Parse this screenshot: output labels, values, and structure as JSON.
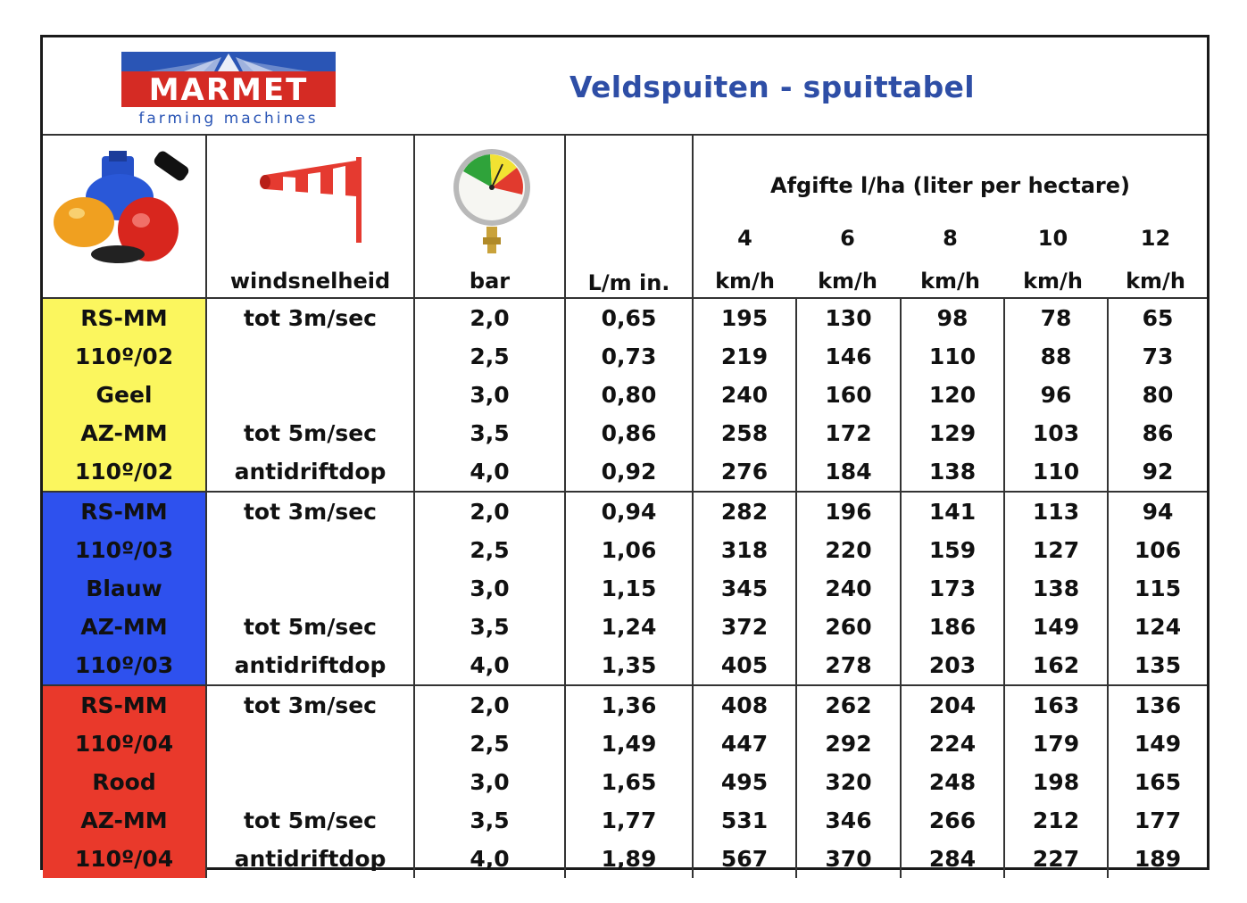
{
  "header": {
    "logo_name": "MARMET",
    "logo_tagline": "farming machines",
    "title": "Veldspuiten - spuittabel"
  },
  "columns": {
    "wind": "windsnelheid",
    "bar": "bar",
    "lmin": "L/m in.",
    "afgifte_title": "Afgifte  l/ha  (liter per hectare)",
    "speeds": [
      "4",
      "6",
      "8",
      "10",
      "12"
    ],
    "speed_unit": "km/h"
  },
  "colors": {
    "yellow": "#fbf65e",
    "blue": "#2e51ee",
    "red": "#e9392b",
    "title_blue": "#2e4ea6"
  },
  "groups": [
    {
      "color": "yellow",
      "rows": [
        {
          "nozzle": "RS-MM",
          "wind": "tot 3m/sec",
          "bar": "2,0",
          "lmin": "0,65",
          "v": [
            "195",
            "130",
            "98",
            "78",
            "65"
          ]
        },
        {
          "nozzle": "110º/02",
          "wind": "",
          "bar": "2,5",
          "lmin": "0,73",
          "v": [
            "219",
            "146",
            "110",
            "88",
            "73"
          ]
        },
        {
          "nozzle": "Geel",
          "wind": "",
          "bar": "3,0",
          "lmin": "0,80",
          "v": [
            "240",
            "160",
            "120",
            "96",
            "80"
          ]
        },
        {
          "nozzle": "AZ-MM",
          "wind": "tot 5m/sec",
          "bar": "3,5",
          "lmin": "0,86",
          "v": [
            "258",
            "172",
            "129",
            "103",
            "86"
          ]
        },
        {
          "nozzle": "110º/02",
          "wind": "antidriftdop",
          "bar": "4,0",
          "lmin": "0,92",
          "v": [
            "276",
            "184",
            "138",
            "110",
            "92"
          ]
        }
      ]
    },
    {
      "color": "blue",
      "rows": [
        {
          "nozzle": "RS-MM",
          "wind": "tot 3m/sec",
          "bar": "2,0",
          "lmin": "0,94",
          "v": [
            "282",
            "196",
            "141",
            "113",
            "94"
          ]
        },
        {
          "nozzle": "110º/03",
          "wind": "",
          "bar": "2,5",
          "lmin": "1,06",
          "v": [
            "318",
            "220",
            "159",
            "127",
            "106"
          ]
        },
        {
          "nozzle": "Blauw",
          "wind": "",
          "bar": "3,0",
          "lmin": "1,15",
          "v": [
            "345",
            "240",
            "173",
            "138",
            "115"
          ]
        },
        {
          "nozzle": "AZ-MM",
          "wind": "tot 5m/sec",
          "bar": "3,5",
          "lmin": "1,24",
          "v": [
            "372",
            "260",
            "186",
            "149",
            "124"
          ]
        },
        {
          "nozzle": "110º/03",
          "wind": "antidriftdop",
          "bar": "4,0",
          "lmin": "1,35",
          "v": [
            "405",
            "278",
            "203",
            "162",
            "135"
          ]
        }
      ]
    },
    {
      "color": "red",
      "rows": [
        {
          "nozzle": "RS-MM",
          "wind": "tot 3m/sec",
          "bar": "2,0",
          "lmin": "1,36",
          "v": [
            "408",
            "262",
            "204",
            "163",
            "136"
          ]
        },
        {
          "nozzle": "110º/04",
          "wind": "",
          "bar": "2,5",
          "lmin": "1,49",
          "v": [
            "447",
            "292",
            "224",
            "179",
            "149"
          ]
        },
        {
          "nozzle": "Rood",
          "wind": "",
          "bar": "3,0",
          "lmin": "1,65",
          "v": [
            "495",
            "320",
            "248",
            "198",
            "165"
          ]
        },
        {
          "nozzle": "AZ-MM",
          "wind": "tot 5m/sec",
          "bar": "3,5",
          "lmin": "1,77",
          "v": [
            "531",
            "346",
            "266",
            "212",
            "177"
          ]
        },
        {
          "nozzle": "110º/04",
          "wind": "antidriftdop",
          "bar": "4,0",
          "lmin": "1,89",
          "v": [
            "567",
            "370",
            "284",
            "227",
            "189"
          ]
        }
      ]
    }
  ]
}
